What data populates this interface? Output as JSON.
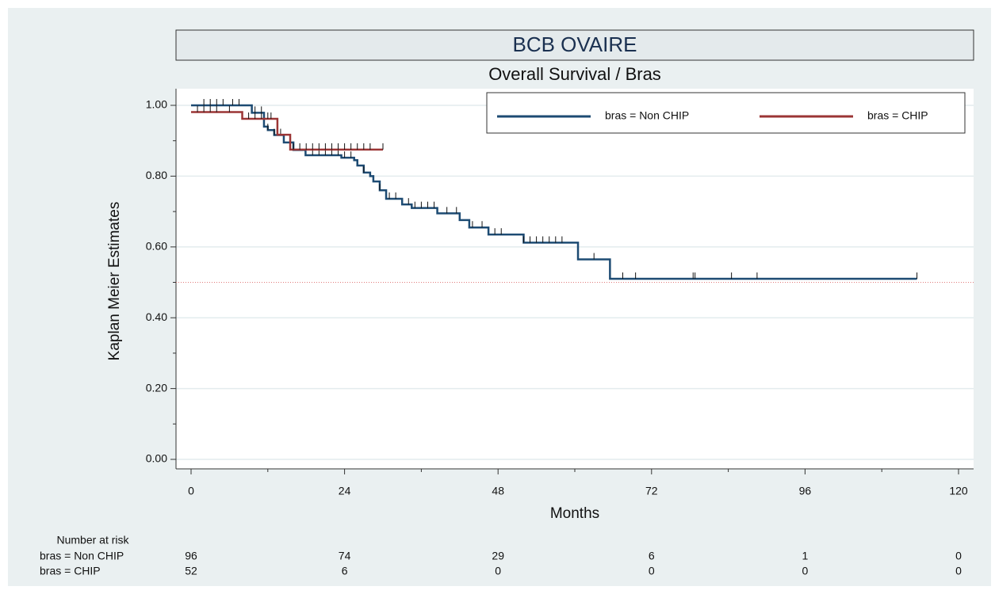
{
  "chart_data": {
    "type": "km",
    "title": "BCB OVAIRE",
    "subtitle": "Overall Survival / Bras",
    "y_label": "Kaplan Meier Estimates",
    "x_label": "Months",
    "xlim": [
      0,
      120
    ],
    "ylim": [
      0,
      1
    ],
    "xticks": [
      0,
      24,
      48,
      72,
      96,
      120
    ],
    "xticks_minor": [
      12,
      36,
      60,
      84,
      108
    ],
    "yticks": [
      {
        "value": 0,
        "label": "0.00"
      },
      {
        "value": 0.2,
        "label": "0.20"
      },
      {
        "value": 0.4,
        "label": "0.40"
      },
      {
        "value": 0.6,
        "label": "0.60"
      },
      {
        "value": 0.8,
        "label": "0.80"
      },
      {
        "value": 1,
        "label": "1.00"
      }
    ],
    "yticks_minor": [
      0.1,
      0.3,
      0.5,
      0.7,
      0.9
    ],
    "grid": true,
    "reference_line": 0.5,
    "legend": "top-right",
    "series": [
      {
        "name": "bras = Non CHIP",
        "color": "#1d4b73",
        "x": [
          0,
          9.5,
          11.4,
          12,
          13,
          14.5,
          16,
          17.9,
          23.5,
          25.5,
          26,
          27,
          28,
          28.5,
          29.5,
          30.5,
          33,
          34.5,
          38.5,
          42,
          43.5,
          46.5,
          52,
          60.5,
          65.5,
          113.5
        ],
        "values": [
          1,
          0.979,
          0.94,
          0.93,
          0.916,
          0.895,
          0.874,
          0.859,
          0.852,
          0.845,
          0.83,
          0.81,
          0.8,
          0.785,
          0.76,
          0.736,
          0.72,
          0.71,
          0.695,
          0.676,
          0.655,
          0.635,
          0.612,
          0.565,
          0.51,
          0.51
        ],
        "censored": [
          2,
          3,
          4,
          5,
          6.5,
          7.5,
          10,
          11,
          12,
          13,
          14,
          19,
          20,
          21,
          22,
          23,
          24,
          25,
          27,
          29.5,
          31,
          32,
          34,
          35,
          36,
          37,
          38,
          40,
          41.5,
          44,
          45.5,
          47.5,
          48.5,
          52,
          53,
          54,
          55,
          56,
          57,
          58,
          63,
          67.5,
          69.5,
          78.5,
          78.8,
          84.5,
          88.5,
          113.5
        ]
      },
      {
        "name": "bras = CHIP",
        "color": "#9b3535",
        "x": [
          0,
          8,
          13.5,
          15.5,
          30
        ],
        "values": [
          0.981,
          0.962,
          0.917,
          0.875,
          0.875
        ],
        "censored": [
          1,
          2,
          3,
          4,
          6,
          9,
          10,
          11,
          12,
          12.5,
          16,
          17,
          18,
          19,
          20,
          21,
          22,
          23,
          24,
          25,
          26,
          27,
          28,
          30
        ]
      }
    ],
    "risk_table": {
      "title": "Number at risk",
      "rows": [
        [
          96,
          74,
          29,
          6,
          1,
          0
        ],
        [
          52,
          6,
          0,
          0,
          0,
          0
        ]
      ]
    }
  }
}
